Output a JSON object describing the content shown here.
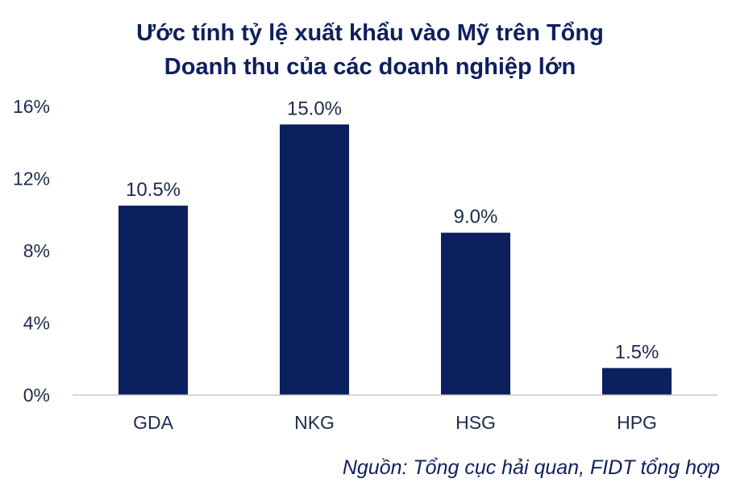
{
  "chart_data": {
    "type": "bar",
    "title_lines": [
      "Ước tính tỷ lệ xuất khẩu vào Mỹ trên Tổng",
      "Doanh thu của các doanh nghiệp lớn"
    ],
    "categories": [
      "GDA",
      "NKG",
      "HSG",
      "HPG"
    ],
    "values": [
      10.5,
      15.0,
      9.0,
      1.5
    ],
    "data_labels": [
      "10.5%",
      "15.0%",
      "9.0%",
      "1.5%"
    ],
    "ylim": [
      0,
      16
    ],
    "yticks": [
      0,
      4,
      8,
      12,
      16
    ],
    "ytick_labels": [
      "0%",
      "4%",
      "8%",
      "12%",
      "16%"
    ],
    "xlabel": "",
    "ylabel": "",
    "grid": false,
    "legend": "none",
    "bar_color": "#0c1f5e",
    "source": "Nguồn: Tổng cục hải quan, FIDT tổng hợp"
  }
}
